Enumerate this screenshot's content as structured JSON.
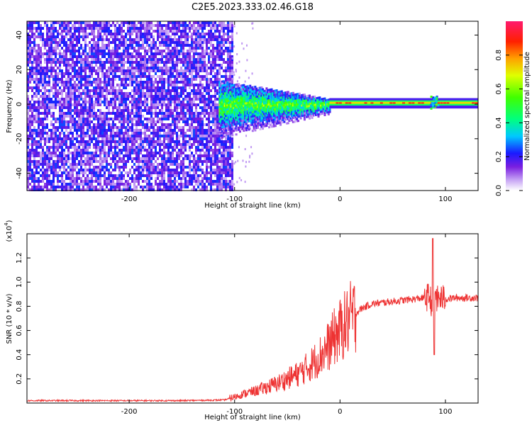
{
  "title": "C2E5.2023.333.02.46.G18",
  "chart_data": [
    {
      "type": "heatmap",
      "xlabel": "Height of straight line (km)",
      "ylabel": "Frequency (Hz)",
      "xlim": [
        -297,
        131
      ],
      "ylim": [
        -50,
        48
      ],
      "xticks": [
        -200,
        -100,
        0,
        100
      ],
      "xtick_labels": [
        "-200",
        "-100",
        "0",
        "100"
      ],
      "yticks": [
        -40,
        -20,
        0,
        20,
        40
      ],
      "ytick_labels": [
        "-40",
        "-20",
        "0",
        "20",
        "40"
      ],
      "colorbar": {
        "label": "Normalized spectral amplitude",
        "range": [
          0,
          1
        ],
        "ticks": [
          0,
          0.2,
          0.4,
          0.6,
          0.8
        ],
        "tick_labels": [
          "0.0",
          "0.2",
          "0.4",
          "0.6",
          "0.8"
        ]
      },
      "regions": [
        {
          "x_range": [
            -297,
            -103
          ],
          "y_range": [
            -50,
            48
          ],
          "amplitude": [
            0.05,
            0.25
          ]
        },
        {
          "x_range": [
            -115,
            -10
          ],
          "y_range": [
            -8,
            6
          ],
          "amplitude": [
            0.2,
            0.55
          ]
        },
        {
          "x_range": [
            -10,
            131
          ],
          "y_range": [
            -1.5,
            2.5
          ],
          "amplitude": [
            0.5,
            0.95
          ]
        }
      ],
      "grid": false
    },
    {
      "type": "line",
      "xlabel": "Height of straight line (km)",
      "ylabel": "SNR (10 * v/v)",
      "multiplier_label": "(x10",
      "multiplier_exp": "4",
      "multiplier_close": ")",
      "xlim": [
        -297,
        131
      ],
      "ylim": [
        0,
        1.4
      ],
      "xticks": [
        -200,
        -100,
        0,
        100
      ],
      "xtick_labels": [
        "-200",
        "-100",
        "0",
        "100"
      ],
      "yticks": [
        0.2,
        0.4,
        0.6,
        0.8,
        1.0,
        1.2
      ],
      "ytick_labels": [
        "0.2",
        "0.4",
        "0.6",
        "0.8",
        "1.0",
        "1.2"
      ],
      "series": [
        {
          "color": "#ee3333",
          "x": [
            -297,
            -250,
            -200,
            -150,
            -110,
            -100,
            -90,
            -80,
            -70,
            -60,
            -50,
            -40,
            -30,
            -20,
            -10,
            -5,
            0,
            5,
            10,
            15,
            20,
            30,
            40,
            50,
            60,
            70,
            80,
            85,
            88,
            90,
            92,
            95,
            100,
            110,
            120,
            131
          ],
          "y": [
            0.02,
            0.02,
            0.02,
            0.02,
            0.025,
            0.05,
            0.08,
            0.1,
            0.13,
            0.16,
            0.2,
            0.24,
            0.3,
            0.38,
            0.48,
            0.55,
            0.6,
            0.65,
            0.7,
            0.74,
            0.78,
            0.82,
            0.83,
            0.84,
            0.85,
            0.86,
            0.87,
            0.88,
            0.8,
            0.95,
            0.85,
            0.87,
            0.86,
            0.87,
            0.87,
            0.87
          ]
        }
      ],
      "grid": false
    }
  ]
}
